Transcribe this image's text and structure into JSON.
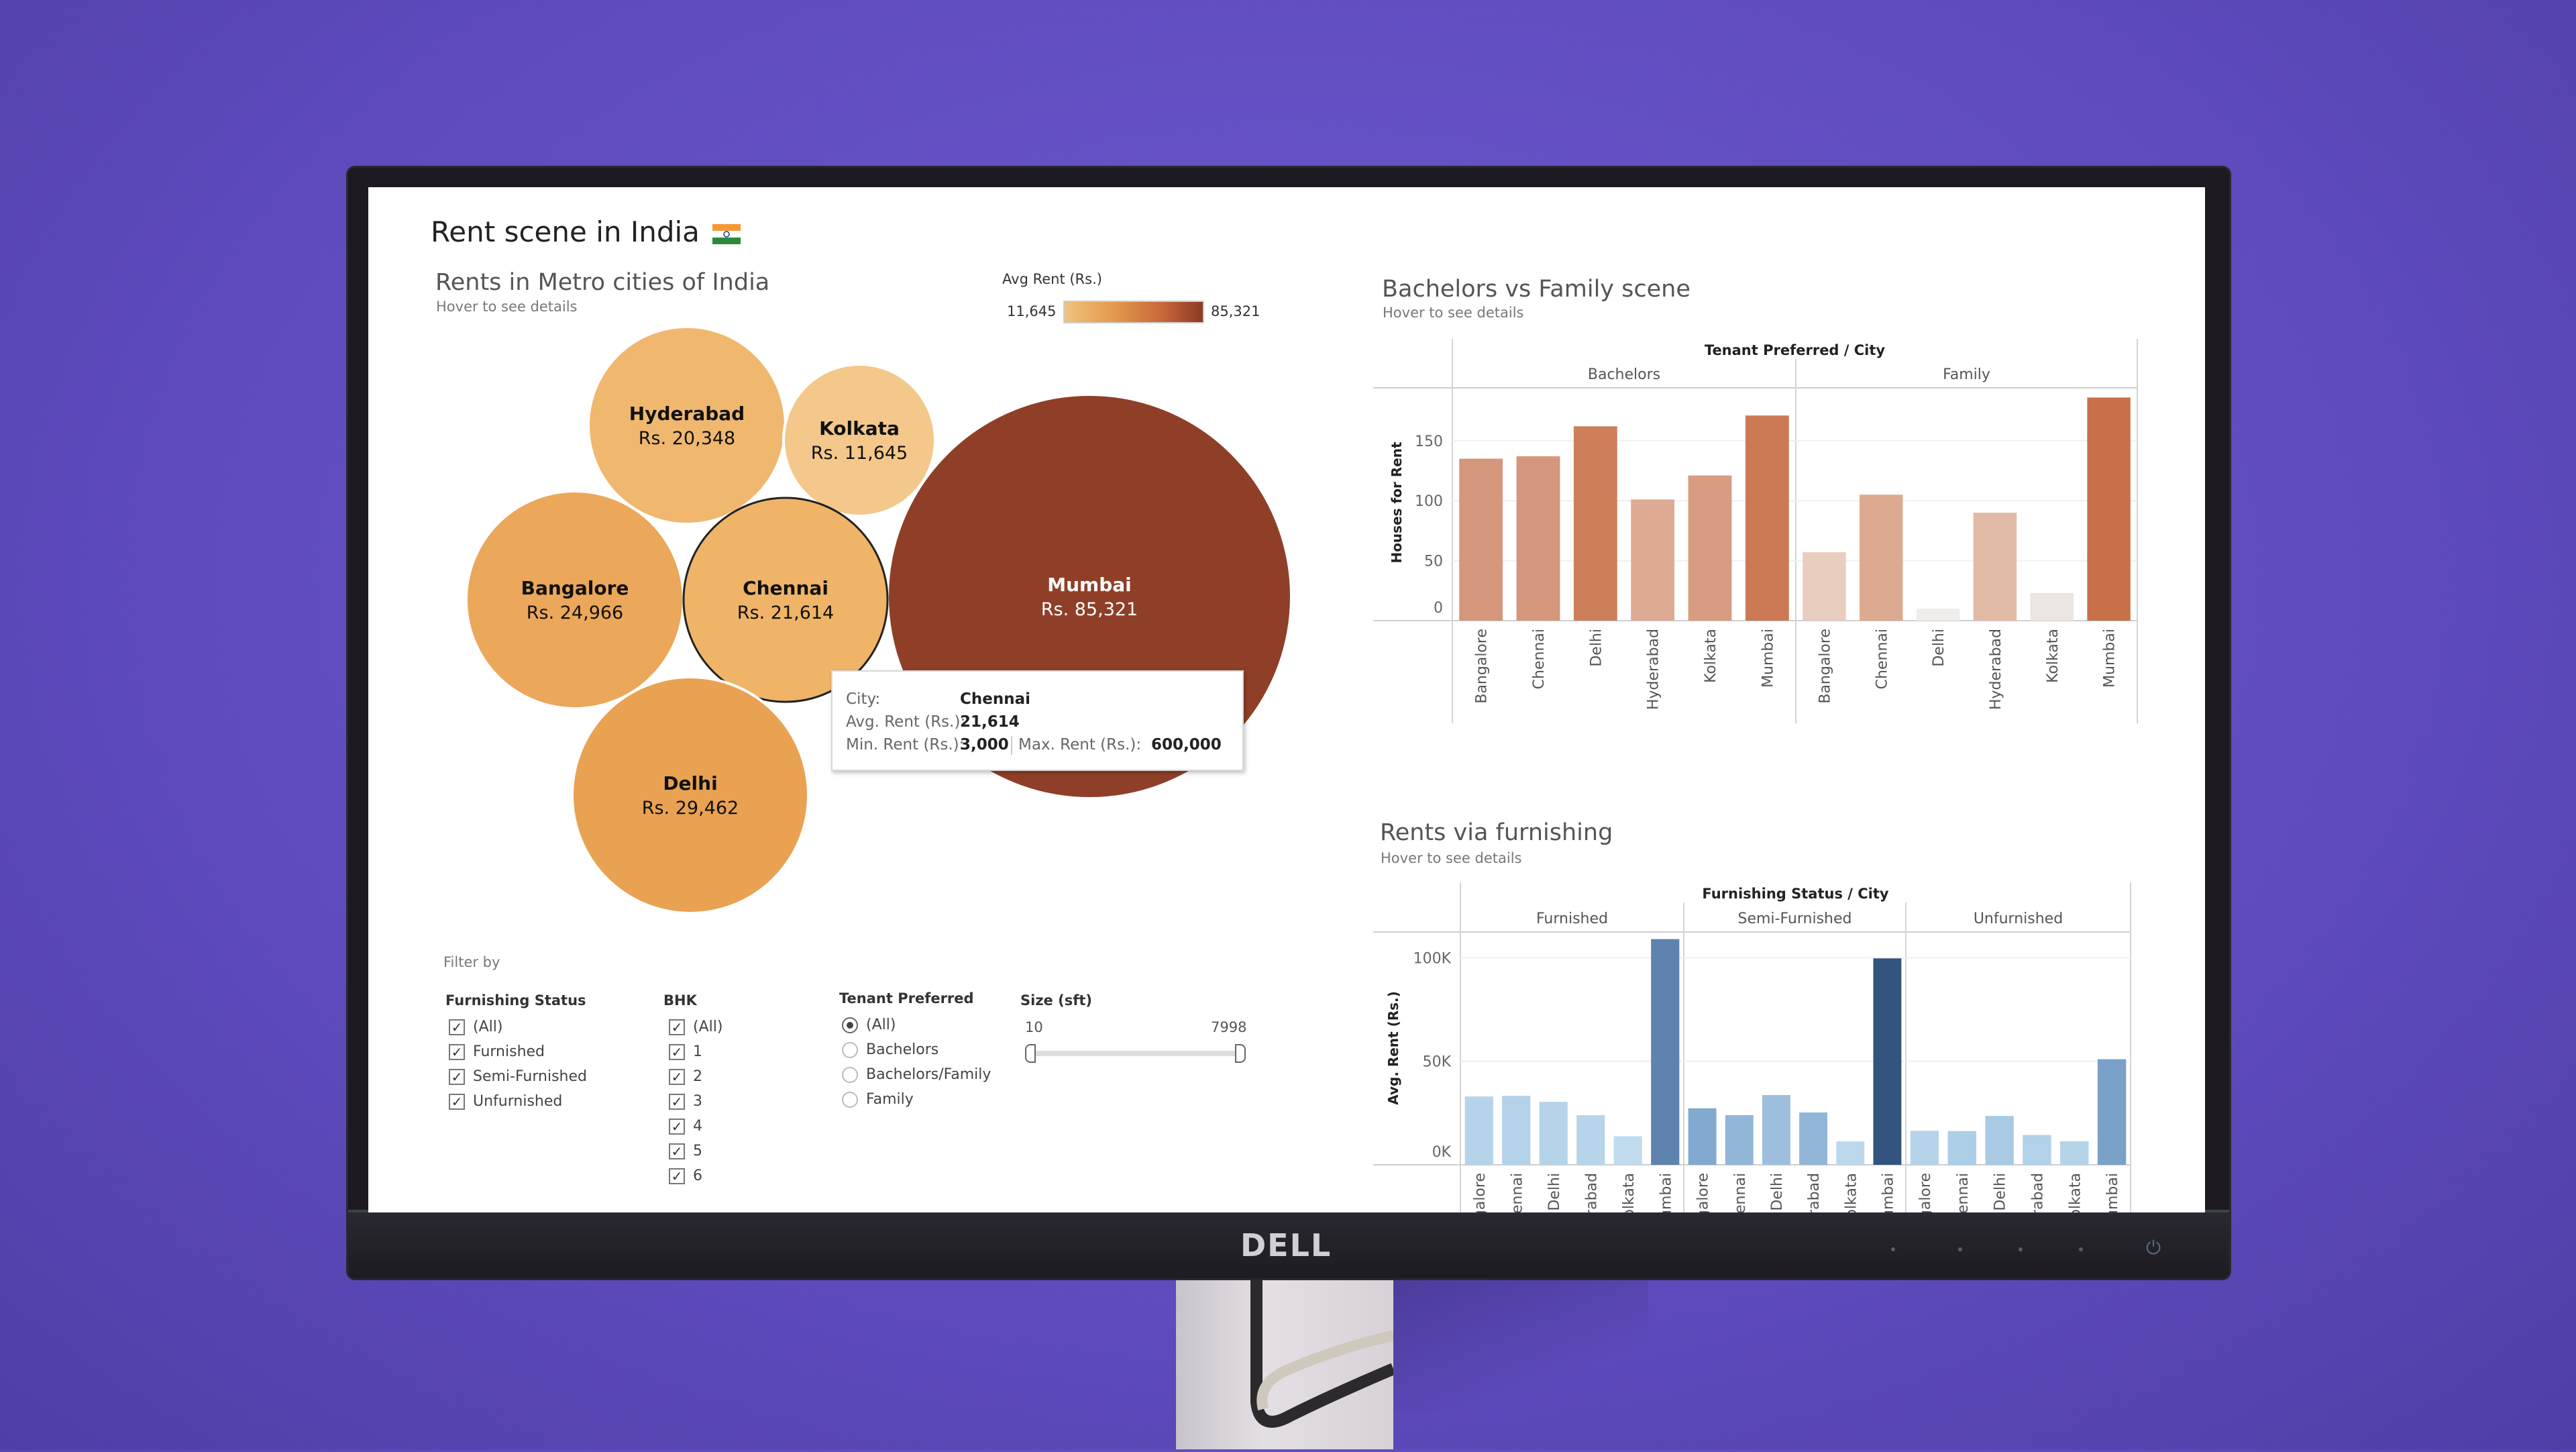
{
  "dashboard": {
    "title": "Rent scene in India",
    "flag_icon": "india-flag-icon"
  },
  "bubble_chart": {
    "title": "Rents in Metro cities of India",
    "subtitle": "Hover to see details",
    "legend": {
      "title": "Avg Rent (Rs.)",
      "min_label": "11,645",
      "max_label": "85,321",
      "min_color": "#f1c27d",
      "max_color": "#8c3a24"
    },
    "chart_data": {
      "type": "bubble",
      "bubbles": [
        {
          "city": "Hyderabad",
          "label": "Rs. 20,348",
          "value": 20348,
          "color": "#f0b86e"
        },
        {
          "city": "Kolkata",
          "label": "Rs. 11,645",
          "value": 11645,
          "color": "#f3c88a"
        },
        {
          "city": "Mumbai",
          "label": "Rs. 85,321",
          "value": 85321,
          "color": "#8f3f28"
        },
        {
          "city": "Bangalore",
          "label": "Rs. 24,966",
          "value": 24966,
          "color": "#eba75a"
        },
        {
          "city": "Chennai",
          "label": "Rs. 21,614",
          "value": 21614,
          "color": "#efb468",
          "highlighted": true
        },
        {
          "city": "Delhi",
          "label": "Rs. 29,462",
          "value": 29462,
          "color": "#e9a252"
        }
      ]
    },
    "tooltip": {
      "city_label": "City:",
      "city_value": "Chennai",
      "avg_label": "Avg. Rent (Rs.):",
      "avg_value": "21,614",
      "min_label": "Min. Rent (Rs.):",
      "min_value": "3,000",
      "max_label": "Max. Rent (Rs.):",
      "max_value": "600,000"
    }
  },
  "filters": {
    "title": "Filter by",
    "furnishing": {
      "label": "Furnishing Status",
      "options": [
        {
          "label": "(All)",
          "checked": true
        },
        {
          "label": "Furnished",
          "checked": true
        },
        {
          "label": "Semi-Furnished",
          "checked": true
        },
        {
          "label": "Unfurnished",
          "checked": true
        }
      ]
    },
    "bhk": {
      "label": "BHK",
      "options": [
        {
          "label": "(All)",
          "checked": true
        },
        {
          "label": "1",
          "checked": true
        },
        {
          "label": "2",
          "checked": true
        },
        {
          "label": "3",
          "checked": true
        },
        {
          "label": "4",
          "checked": true
        },
        {
          "label": "5",
          "checked": true
        },
        {
          "label": "6",
          "checked": true
        }
      ]
    },
    "tenant": {
      "label": "Tenant Preferred",
      "options": [
        {
          "label": "(All)",
          "selected": true
        },
        {
          "label": "Bachelors",
          "selected": false
        },
        {
          "label": "Bachelors/Family",
          "selected": false
        },
        {
          "label": "Family",
          "selected": false
        }
      ]
    },
    "size": {
      "label": "Size (sft)",
      "min": "10",
      "max": "7998"
    }
  },
  "chart_data": [
    {
      "type": "bar",
      "title": "Bachelors vs Family scene",
      "subtitle": "Hover to see details",
      "header": "Tenant Preferred / City",
      "ylabel": "Houses for Rent",
      "ylim": [
        0,
        195
      ],
      "yticks": [
        "0",
        "50",
        "100",
        "150"
      ],
      "ytick_values": [
        0,
        50,
        100,
        150
      ],
      "grid": true,
      "categories": [
        "Bangalore",
        "Chennai",
        "Delhi",
        "Hyderabad",
        "Kolkata",
        "Mumbai"
      ],
      "panes": [
        {
          "name": "Bachelors",
          "values": [
            135,
            137,
            162,
            101,
            121,
            171
          ],
          "colors": [
            "#d4977b",
            "#d4977b",
            "#cd7f5c",
            "#ddab93",
            "#d69d82",
            "#cc7a56"
          ]
        },
        {
          "name": "Family",
          "values": [
            57,
            105,
            10,
            90,
            23,
            186
          ],
          "colors": [
            "#e9cdbf",
            "#dcaa90",
            "#efedeb",
            "#e1baa6",
            "#ece6e2",
            "#c8704a"
          ]
        }
      ]
    },
    {
      "type": "bar",
      "title": "Rents via furnishing",
      "subtitle": "Hover to see details",
      "header": "Furnishing Status / City",
      "ylabel": "Avg. Rent (Rs.)",
      "ylim": [
        0,
        120000
      ],
      "yticks": [
        "0K",
        "50K",
        "100K"
      ],
      "ytick_values": [
        0,
        50000,
        100000
      ],
      "grid": true,
      "categories": [
        "Bangalore",
        "Chennai",
        "Delhi",
        "Hyderabad",
        "Kolkata",
        "Mumbai"
      ],
      "panes": [
        {
          "name": "Furnished",
          "values": [
            33000,
            33300,
            30400,
            24000,
            13800,
            109000
          ],
          "colors": [
            "#b5d4ea",
            "#b3d2e9",
            "#b5d4ea",
            "#b7d5ea",
            "#c1dcee",
            "#5d83ae"
          ]
        },
        {
          "name": "Semi-Furnished",
          "values": [
            27300,
            24000,
            33700,
            25300,
            11300,
            99700
          ],
          "colors": [
            "#82a9cf",
            "#92b6d8",
            "#9dbfdd",
            "#92b6d8",
            "#bcd8ed",
            "#33547e"
          ]
        },
        {
          "name": "Unfurnished",
          "values": [
            16400,
            16300,
            23600,
            14400,
            11400,
            51000
          ],
          "colors": [
            "#b5d4ea",
            "#acceE6",
            "#a8cae5",
            "#b2d2e9",
            "#b5d4ea",
            "#7aa1c8"
          ]
        }
      ]
    }
  ],
  "monitor": {
    "brand": "DELL",
    "power_icon": "power-icon"
  }
}
